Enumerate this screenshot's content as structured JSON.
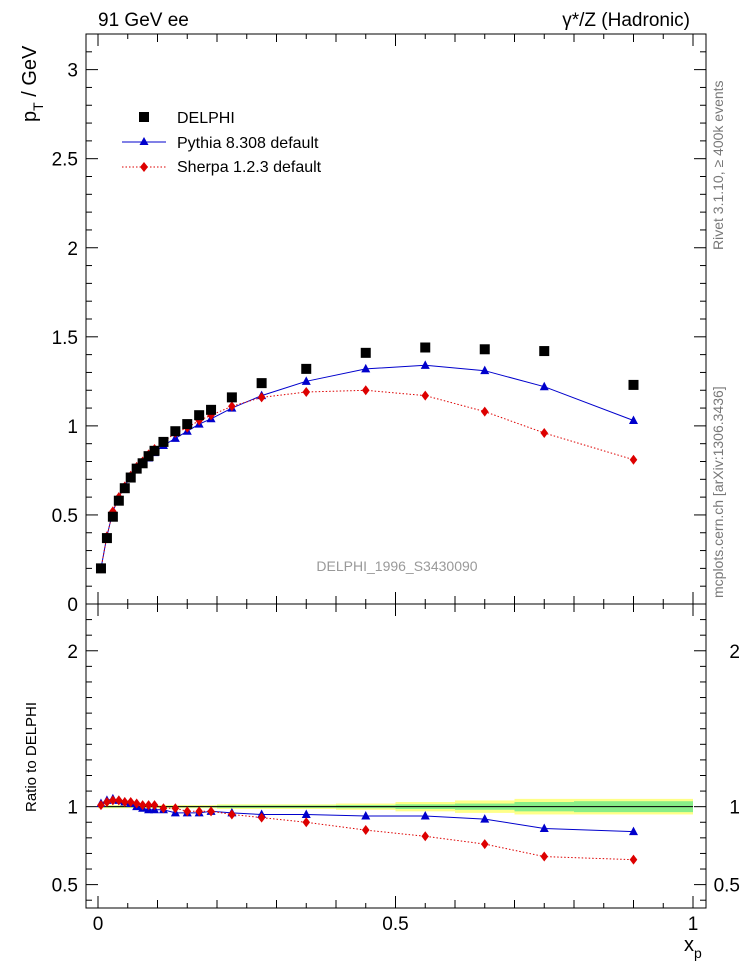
{
  "header": {
    "left_title": "91 GeV ee",
    "right_title": "γ*/Z (Hadronic)"
  },
  "side": {
    "rivet": "Rivet 3.1.10, ≥ 400k events",
    "mcplots": "mcplots.cern.ch [arXiv:1306.3436]"
  },
  "watermark": "DELPHI_1996_S3430090",
  "labels": {
    "ylabel_main": "p_T / GeV",
    "ylabel_ratio": "Ratio to DELPHI",
    "xlabel": "x_p"
  },
  "colors": {
    "data": "#000000",
    "pythia": "#0000cc",
    "sherpa": "#dd0000",
    "band_outer": "#ffff88",
    "band_inner": "#88ee88"
  },
  "chart_data": [
    {
      "type": "scatter",
      "panel": "main",
      "xlim": [
        0,
        1.0
      ],
      "ylim": [
        0,
        3.2
      ],
      "yticks": [
        "0",
        "0.5",
        "1",
        "1.5",
        "2",
        "2.5",
        "3"
      ],
      "legend_placement": "top-left",
      "x": [
        0.005,
        0.015,
        0.025,
        0.035,
        0.045,
        0.055,
        0.065,
        0.075,
        0.085,
        0.095,
        0.11,
        0.13,
        0.15,
        0.17,
        0.19,
        0.225,
        0.275,
        0.35,
        0.45,
        0.55,
        0.65,
        0.75,
        0.9
      ],
      "series": [
        {
          "name": "DELPHI",
          "marker": "square",
          "values": [
            0.2,
            0.37,
            0.49,
            0.58,
            0.65,
            0.71,
            0.76,
            0.79,
            0.83,
            0.86,
            0.91,
            0.97,
            1.01,
            1.06,
            1.09,
            1.16,
            1.24,
            1.32,
            1.41,
            1.44,
            1.43,
            1.42,
            1.23
          ]
        },
        {
          "name": "Pythia 8.308 default",
          "marker": "triangle",
          "values": [
            0.2,
            0.38,
            0.52,
            0.6,
            0.66,
            0.72,
            0.76,
            0.79,
            0.82,
            0.85,
            0.89,
            0.93,
            0.97,
            1.01,
            1.04,
            1.1,
            1.17,
            1.25,
            1.32,
            1.34,
            1.31,
            1.22,
            1.03
          ]
        },
        {
          "name": "Sherpa 1.2.3 default",
          "marker": "diamond",
          "values": [
            0.2,
            0.38,
            0.52,
            0.6,
            0.66,
            0.72,
            0.77,
            0.8,
            0.84,
            0.87,
            0.91,
            0.96,
            0.99,
            1.03,
            1.06,
            1.11,
            1.16,
            1.19,
            1.2,
            1.17,
            1.08,
            0.96,
            0.81
          ]
        }
      ]
    },
    {
      "type": "scatter",
      "panel": "ratio",
      "xlim": [
        0,
        1.0
      ],
      "ylim": [
        0.35,
        2.3
      ],
      "xticks": [
        "0",
        "0.5",
        "1"
      ],
      "yticks": [
        "0.5",
        "1",
        "2"
      ],
      "band_x": [
        0.0,
        0.1,
        0.2,
        0.3,
        0.4,
        0.5,
        0.6,
        0.7,
        0.8,
        1.0
      ],
      "band_outer_half": [
        0.01,
        0.01,
        0.015,
        0.015,
        0.02,
        0.03,
        0.04,
        0.05,
        0.05,
        0.05
      ],
      "band_inner_half": [
        0.005,
        0.005,
        0.008,
        0.008,
        0.01,
        0.015,
        0.02,
        0.03,
        0.035,
        0.035
      ],
      "x": [
        0.005,
        0.015,
        0.025,
        0.035,
        0.045,
        0.055,
        0.065,
        0.075,
        0.085,
        0.095,
        0.11,
        0.13,
        0.15,
        0.17,
        0.19,
        0.225,
        0.275,
        0.35,
        0.45,
        0.55,
        0.65,
        0.75,
        0.9
      ],
      "series": [
        {
          "name": "Pythia 8.308 default",
          "marker": "triangle",
          "values": [
            1.02,
            1.04,
            1.05,
            1.04,
            1.03,
            1.02,
            1.0,
            0.99,
            0.98,
            0.98,
            0.98,
            0.96,
            0.96,
            0.96,
            0.97,
            0.96,
            0.95,
            0.95,
            0.94,
            0.94,
            0.92,
            0.86,
            0.84
          ]
        },
        {
          "name": "Sherpa 1.2.3 default",
          "marker": "diamond",
          "values": [
            1.01,
            1.03,
            1.04,
            1.04,
            1.03,
            1.03,
            1.02,
            1.01,
            1.01,
            1.01,
            0.99,
            0.99,
            0.97,
            0.97,
            0.97,
            0.95,
            0.93,
            0.9,
            0.85,
            0.81,
            0.76,
            0.68,
            0.66
          ]
        }
      ]
    }
  ]
}
